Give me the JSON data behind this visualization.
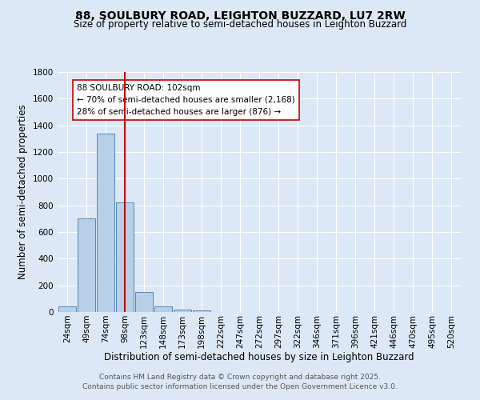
{
  "title_line1": "88, SOULBURY ROAD, LEIGHTON BUZZARD, LU7 2RW",
  "title_line2": "Size of property relative to semi-detached houses in Leighton Buzzard",
  "xlabel": "Distribution of semi-detached houses by size in Leighton Buzzard",
  "ylabel": "Number of semi-detached properties",
  "categories": [
    "24sqm",
    "49sqm",
    "74sqm",
    "98sqm",
    "123sqm",
    "148sqm",
    "173sqm",
    "198sqm",
    "222sqm",
    "247sqm",
    "272sqm",
    "297sqm",
    "322sqm",
    "346sqm",
    "371sqm",
    "396sqm",
    "421sqm",
    "446sqm",
    "470sqm",
    "495sqm",
    "520sqm"
  ],
  "values": [
    40,
    700,
    1340,
    820,
    150,
    40,
    20,
    15,
    0,
    0,
    0,
    0,
    0,
    0,
    0,
    0,
    0,
    0,
    0,
    0,
    0
  ],
  "bar_color": "#b8cfe8",
  "bar_edge_color": "#5588bb",
  "background_color": "#dce8f5",
  "grid_color": "#ffffff",
  "red_line_color": "#cc0000",
  "annotation_text_line1": "88 SOULBURY ROAD: 102sqm",
  "annotation_text_line2": "← 70% of semi-detached houses are smaller (2,168)",
  "annotation_text_line3": "28% of semi-detached houses are larger (876) →",
  "annotation_box_color": "#ffffff",
  "annotation_box_edge": "#cc0000",
  "ylim": [
    0,
    1800
  ],
  "yticks": [
    0,
    200,
    400,
    600,
    800,
    1000,
    1200,
    1400,
    1600,
    1800
  ],
  "footnote_line1": "Contains HM Land Registry data © Crown copyright and database right 2025.",
  "footnote_line2": "Contains public sector information licensed under the Open Government Licence v3.0.",
  "title_fontsize": 10,
  "subtitle_fontsize": 8.5,
  "axis_label_fontsize": 8.5,
  "tick_fontsize": 7.5,
  "annotation_fontsize": 7.5,
  "footnote_fontsize": 6.5
}
